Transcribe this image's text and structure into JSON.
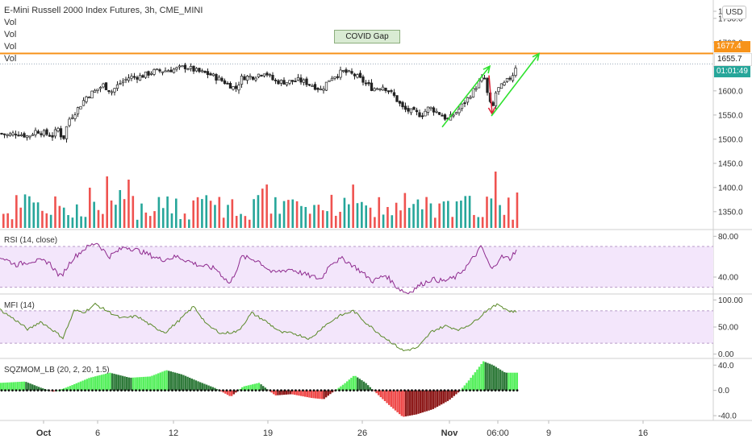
{
  "legend": {
    "title": "E-Mini Russell 2000 Index Futures, 3h, CME_MINI",
    "vol_labels": [
      "Vol",
      "Vol",
      "Vol",
      "Vol"
    ]
  },
  "currency": "USD",
  "annotation": {
    "text": "COVID Gap"
  },
  "price_tags": {
    "gap_level": "1677.4",
    "last_price": "1655.7",
    "countdown": "01:01:49"
  },
  "chart_data": [
    {
      "type": "candlestick",
      "pane": "price",
      "title": "E-Mini Russell 2000 Index Futures, 3h, CME_MINI",
      "yticks": [
        "1",
        "1750.0",
        "1700.0",
        "1650.0",
        "1600.0",
        "1550.0",
        "1500.0",
        "1450.0",
        "1400.0",
        "1350.0"
      ],
      "ylim": [
        1313,
        1788
      ],
      "horizontal_line": 1677.4,
      "close_path": [
        {
          "x": 0,
          "y": 1512
        },
        {
          "x": 10,
          "y": 1508
        },
        {
          "x": 20,
          "y": 1513
        },
        {
          "x": 35,
          "y": 1506
        },
        {
          "x": 45,
          "y": 1518
        },
        {
          "x": 55,
          "y": 1512
        },
        {
          "x": 65,
          "y": 1507
        },
        {
          "x": 72,
          "y": 1522
        },
        {
          "x": 78,
          "y": 1498
        },
        {
          "x": 85,
          "y": 1540
        },
        {
          "x": 95,
          "y": 1560
        },
        {
          "x": 108,
          "y": 1590
        },
        {
          "x": 118,
          "y": 1600
        },
        {
          "x": 128,
          "y": 1612
        },
        {
          "x": 138,
          "y": 1598
        },
        {
          "x": 148,
          "y": 1615
        },
        {
          "x": 160,
          "y": 1628
        },
        {
          "x": 175,
          "y": 1630
        },
        {
          "x": 190,
          "y": 1640
        },
        {
          "x": 205,
          "y": 1642
        },
        {
          "x": 218,
          "y": 1645
        },
        {
          "x": 230,
          "y": 1650
        },
        {
          "x": 245,
          "y": 1640
        },
        {
          "x": 260,
          "y": 1634
        },
        {
          "x": 272,
          "y": 1624
        },
        {
          "x": 285,
          "y": 1612
        },
        {
          "x": 292,
          "y": 1604
        },
        {
          "x": 300,
          "y": 1628
        },
        {
          "x": 315,
          "y": 1630
        },
        {
          "x": 328,
          "y": 1640
        },
        {
          "x": 340,
          "y": 1620
        },
        {
          "x": 355,
          "y": 1618
        },
        {
          "x": 370,
          "y": 1622
        },
        {
          "x": 385,
          "y": 1614
        },
        {
          "x": 398,
          "y": 1602
        },
        {
          "x": 410,
          "y": 1628
        },
        {
          "x": 425,
          "y": 1640
        },
        {
          "x": 440,
          "y": 1632
        },
        {
          "x": 452,
          "y": 1617
        },
        {
          "x": 462,
          "y": 1604
        },
        {
          "x": 475,
          "y": 1610
        },
        {
          "x": 488,
          "y": 1590
        },
        {
          "x": 500,
          "y": 1562
        },
        {
          "x": 512,
          "y": 1556
        },
        {
          "x": 522,
          "y": 1550
        },
        {
          "x": 532,
          "y": 1566
        },
        {
          "x": 545,
          "y": 1553
        },
        {
          "x": 555,
          "y": 1540
        },
        {
          "x": 568,
          "y": 1560
        },
        {
          "x": 580,
          "y": 1585
        },
        {
          "x": 592,
          "y": 1614
        },
        {
          "x": 600,
          "y": 1630
        },
        {
          "x": 605,
          "y": 1585
        },
        {
          "x": 610,
          "y": 1560
        },
        {
          "x": 615,
          "y": 1600
        },
        {
          "x": 625,
          "y": 1614
        },
        {
          "x": 635,
          "y": 1632
        },
        {
          "x": 640,
          "y": 1655
        }
      ],
      "trend_arrows": [
        {
          "from": {
            "x": 548,
            "y": 1525
          },
          "to": {
            "x": 607,
            "y": 1651
          }
        },
        {
          "from": {
            "x": 606,
            "y": 1632
          },
          "to": {
            "x": 610,
            "y": 1552
          }
        },
        {
          "from": {
            "x": 609,
            "y": 1548
          },
          "to": {
            "x": 668,
            "y": 1677
          }
        }
      ]
    },
    {
      "type": "bar",
      "pane": "volume",
      "title": "Vol",
      "bar_count": 120,
      "notable": [
        {
          "x": 130,
          "y": 3.2
        },
        {
          "x": 157,
          "y": 3.0
        },
        {
          "x": 615,
          "y": 3.5
        },
        {
          "x": 641,
          "y": 2.2
        }
      ]
    },
    {
      "type": "line",
      "pane": "rsi",
      "title": "RSI (14, close)",
      "yticks": [
        "80.00",
        "40.00"
      ],
      "band": [
        30,
        70
      ],
      "ylim": [
        25,
        85
      ],
      "points": [
        {
          "x": 0,
          "y": 60
        },
        {
          "x": 20,
          "y": 52
        },
        {
          "x": 40,
          "y": 56
        },
        {
          "x": 60,
          "y": 55
        },
        {
          "x": 75,
          "y": 40
        },
        {
          "x": 90,
          "y": 58
        },
        {
          "x": 105,
          "y": 68
        },
        {
          "x": 120,
          "y": 74
        },
        {
          "x": 135,
          "y": 60
        },
        {
          "x": 155,
          "y": 70
        },
        {
          "x": 175,
          "y": 65
        },
        {
          "x": 200,
          "y": 57
        },
        {
          "x": 220,
          "y": 60
        },
        {
          "x": 245,
          "y": 52
        },
        {
          "x": 268,
          "y": 48
        },
        {
          "x": 285,
          "y": 33
        },
        {
          "x": 300,
          "y": 60
        },
        {
          "x": 320,
          "y": 56
        },
        {
          "x": 338,
          "y": 44
        },
        {
          "x": 360,
          "y": 48
        },
        {
          "x": 380,
          "y": 42
        },
        {
          "x": 398,
          "y": 38
        },
        {
          "x": 410,
          "y": 54
        },
        {
          "x": 425,
          "y": 58
        },
        {
          "x": 440,
          "y": 50
        },
        {
          "x": 462,
          "y": 36
        },
        {
          "x": 478,
          "y": 42
        },
        {
          "x": 492,
          "y": 30
        },
        {
          "x": 505,
          "y": 24
        },
        {
          "x": 520,
          "y": 32
        },
        {
          "x": 535,
          "y": 38
        },
        {
          "x": 550,
          "y": 36
        },
        {
          "x": 565,
          "y": 40
        },
        {
          "x": 580,
          "y": 52
        },
        {
          "x": 597,
          "y": 70
        },
        {
          "x": 605,
          "y": 54
        },
        {
          "x": 610,
          "y": 47
        },
        {
          "x": 620,
          "y": 60
        },
        {
          "x": 632,
          "y": 58
        },
        {
          "x": 640,
          "y": 67
        }
      ]
    },
    {
      "type": "line",
      "pane": "mfi",
      "title": "MFI (14)",
      "yticks": [
        "100.00",
        "50.00",
        "0.00"
      ],
      "band": [
        20,
        80
      ],
      "ylim": [
        -5,
        108
      ],
      "points": [
        {
          "x": 0,
          "y": 82
        },
        {
          "x": 20,
          "y": 62
        },
        {
          "x": 35,
          "y": 45
        },
        {
          "x": 50,
          "y": 60
        },
        {
          "x": 65,
          "y": 45
        },
        {
          "x": 78,
          "y": 30
        },
        {
          "x": 92,
          "y": 80
        },
        {
          "x": 105,
          "y": 78
        },
        {
          "x": 118,
          "y": 92
        },
        {
          "x": 130,
          "y": 82
        },
        {
          "x": 150,
          "y": 66
        },
        {
          "x": 170,
          "y": 70
        },
        {
          "x": 190,
          "y": 50
        },
        {
          "x": 205,
          "y": 40
        },
        {
          "x": 222,
          "y": 62
        },
        {
          "x": 240,
          "y": 88
        },
        {
          "x": 258,
          "y": 52
        },
        {
          "x": 275,
          "y": 38
        },
        {
          "x": 295,
          "y": 42
        },
        {
          "x": 312,
          "y": 76
        },
        {
          "x": 330,
          "y": 60
        },
        {
          "x": 348,
          "y": 40
        },
        {
          "x": 365,
          "y": 38
        },
        {
          "x": 385,
          "y": 28
        },
        {
          "x": 400,
          "y": 50
        },
        {
          "x": 420,
          "y": 70
        },
        {
          "x": 438,
          "y": 80
        },
        {
          "x": 452,
          "y": 60
        },
        {
          "x": 468,
          "y": 40
        },
        {
          "x": 482,
          "y": 25
        },
        {
          "x": 500,
          "y": 6
        },
        {
          "x": 518,
          "y": 12
        },
        {
          "x": 535,
          "y": 42
        },
        {
          "x": 552,
          "y": 52
        },
        {
          "x": 570,
          "y": 45
        },
        {
          "x": 588,
          "y": 60
        },
        {
          "x": 604,
          "y": 82
        },
        {
          "x": 618,
          "y": 92
        },
        {
          "x": 630,
          "y": 80
        },
        {
          "x": 640,
          "y": 78
        }
      ]
    },
    {
      "type": "bar",
      "pane": "squeeze_momentum",
      "title": "SQZMOM_LB (20, 2, 20, 1.5)",
      "yticks": [
        "40.0",
        "0.0",
        "-40.0"
      ],
      "ylim": [
        -45,
        48
      ],
      "profile": [
        {
          "x": 0,
          "y": 12
        },
        {
          "x": 30,
          "y": 14
        },
        {
          "x": 50,
          "y": 4
        },
        {
          "x": 65,
          "y": -2
        },
        {
          "x": 80,
          "y": 4
        },
        {
          "x": 110,
          "y": 20
        },
        {
          "x": 135,
          "y": 28
        },
        {
          "x": 160,
          "y": 20
        },
        {
          "x": 185,
          "y": 22
        },
        {
          "x": 205,
          "y": 32
        },
        {
          "x": 225,
          "y": 25
        },
        {
          "x": 245,
          "y": 14
        },
        {
          "x": 265,
          "y": 4
        },
        {
          "x": 285,
          "y": -10
        },
        {
          "x": 300,
          "y": 6
        },
        {
          "x": 320,
          "y": 12
        },
        {
          "x": 340,
          "y": -8
        },
        {
          "x": 360,
          "y": -6
        },
        {
          "x": 385,
          "y": -12
        },
        {
          "x": 400,
          "y": -14
        },
        {
          "x": 410,
          "y": -4
        },
        {
          "x": 425,
          "y": 10
        },
        {
          "x": 438,
          "y": 24
        },
        {
          "x": 452,
          "y": 12
        },
        {
          "x": 465,
          "y": -4
        },
        {
          "x": 480,
          "y": -22
        },
        {
          "x": 498,
          "y": -42
        },
        {
          "x": 515,
          "y": -38
        },
        {
          "x": 535,
          "y": -30
        },
        {
          "x": 555,
          "y": -16
        },
        {
          "x": 568,
          "y": -2
        },
        {
          "x": 580,
          "y": 16
        },
        {
          "x": 598,
          "y": 46
        },
        {
          "x": 610,
          "y": 40
        },
        {
          "x": 625,
          "y": 28
        },
        {
          "x": 641,
          "y": 28
        }
      ]
    }
  ],
  "x_axis": {
    "labels": [
      {
        "text": "Oct",
        "x": 54
      },
      {
        "text": "6",
        "x": 121
      },
      {
        "text": "12",
        "x": 215
      },
      {
        "text": "19",
        "x": 332
      },
      {
        "text": "26",
        "x": 449
      },
      {
        "text": "Nov",
        "x": 557
      },
      {
        "text": "06:00",
        "x": 617
      },
      {
        "text": "9",
        "x": 680
      },
      {
        "text": "16",
        "x": 797
      }
    ]
  },
  "colors": {
    "up": "#26a69a",
    "down": "#ef5350",
    "candle": "#222222",
    "gap_line": "#f7931a",
    "rsi": "#8e2a8e",
    "mfi": "#5b8a2a",
    "band_fill": "#f3e6fb",
    "arrow_green": "#2ee12e",
    "arrow_red": "#e0263a",
    "countdown_bg": "#26a69a",
    "sqz_light_green": "#57f05e",
    "sqz_dark_green": "#2f7a3a",
    "sqz_red": "#ef4a4a",
    "sqz_dark_red": "#8e1a1a"
  }
}
